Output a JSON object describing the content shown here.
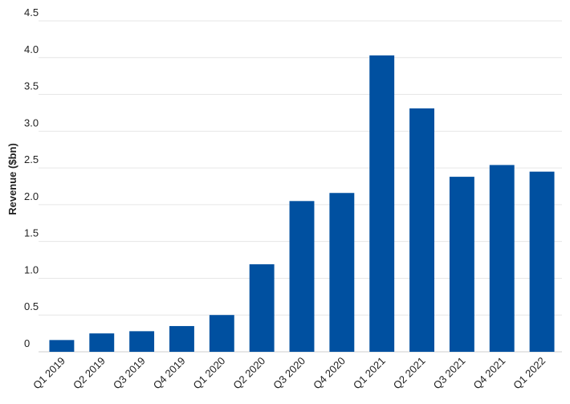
{
  "chart_data": {
    "type": "bar",
    "title": "",
    "xlabel": "",
    "ylabel": "Revenue ($bn)",
    "categories": [
      "Q1 2019",
      "Q2 2019",
      "Q3 2019",
      "Q4 2019",
      "Q1 2020",
      "Q2 2020",
      "Q3 2020",
      "Q4 2020",
      "Q1 2021",
      "Q2 2021",
      "Q3 2021",
      "Q4 2021",
      "Q1 2022"
    ],
    "values": [
      0.16,
      0.25,
      0.28,
      0.35,
      0.5,
      1.19,
      2.05,
      2.16,
      4.03,
      3.31,
      2.38,
      2.54,
      2.45
    ],
    "ylim": [
      0,
      4.5
    ],
    "yticks": [
      0,
      0.5,
      1.0,
      1.5,
      2.0,
      2.5,
      3.0,
      3.5,
      4.0,
      4.5
    ],
    "ytick_labels": [
      "0",
      "0.5",
      "1.0",
      "1.5",
      "2.0",
      "2.5",
      "3.0",
      "3.5",
      "4.0",
      "4.5"
    ],
    "grid": true,
    "legend": "none",
    "bar_color": "#0050a0"
  }
}
